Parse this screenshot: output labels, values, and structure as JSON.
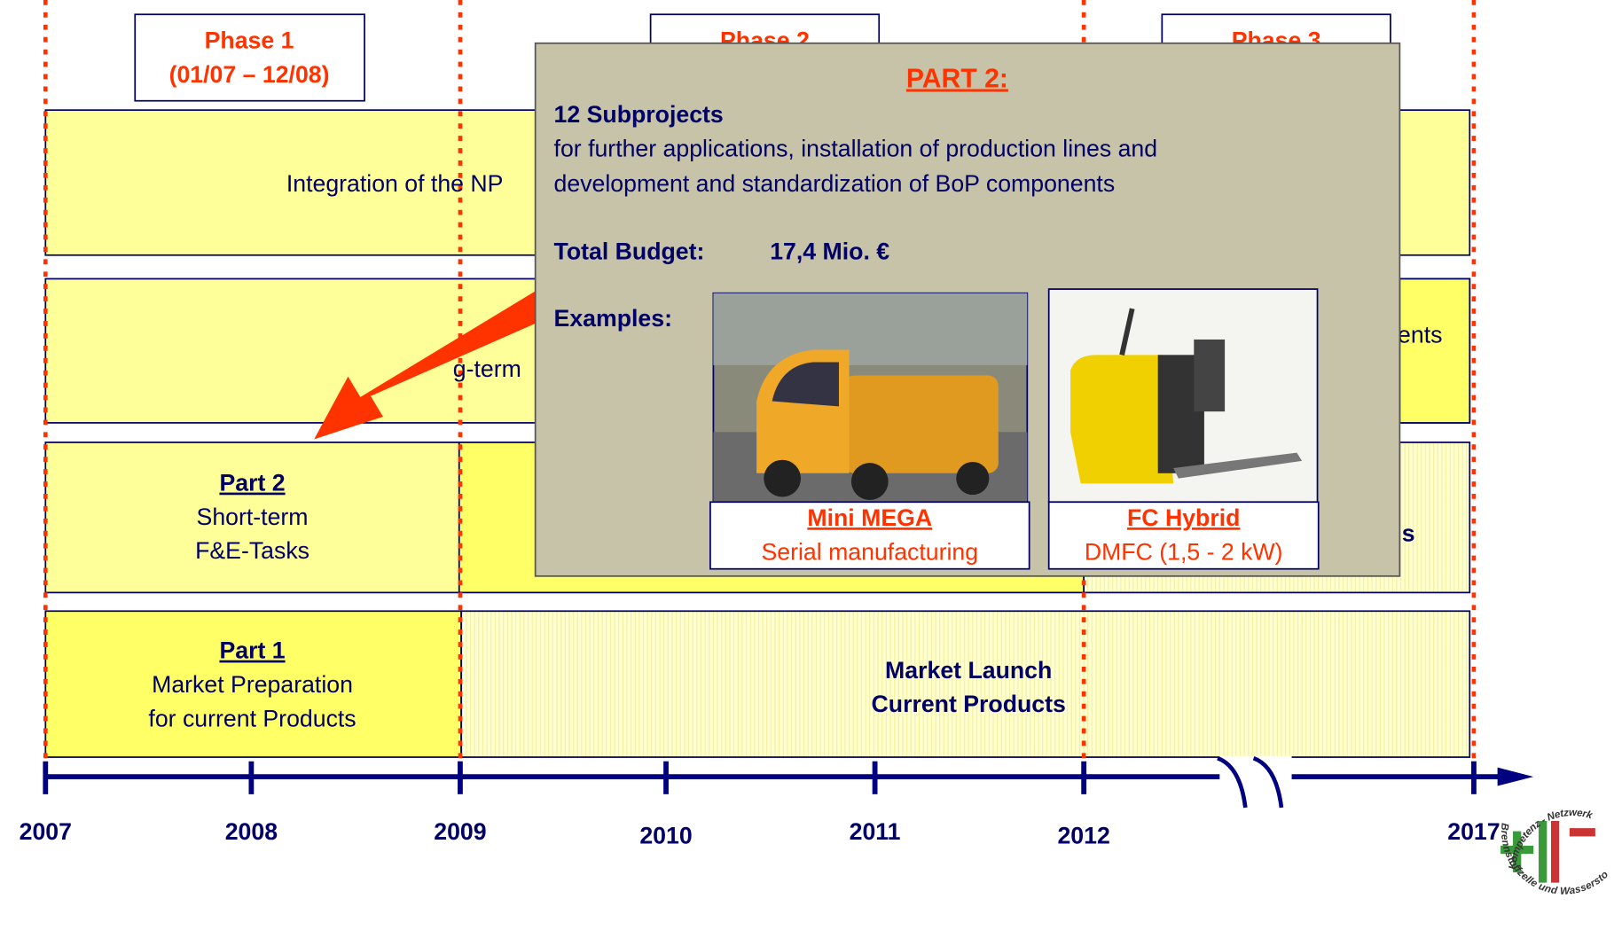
{
  "phases": [
    {
      "label": "Phase 1",
      "period": "(01/07 – 12/08)"
    },
    {
      "label": "Phase 2"
    },
    {
      "label": "Phase 3"
    }
  ],
  "rows": {
    "integration": "Integration of the NP",
    "row2_fragment_left": "g-term",
    "row2_fragment_right": "ents",
    "row3_fragment_right": "s",
    "part2": {
      "title": "Part 2",
      "lines": [
        "Short-term",
        "F&E-Tasks"
      ]
    },
    "part1": {
      "title": "Part 1",
      "lines": [
        "Market Preparation",
        "for current Products"
      ]
    },
    "launch": [
      "Market Launch",
      "Current Products"
    ]
  },
  "years": [
    2007,
    2008,
    2009,
    2010,
    2011,
    2012,
    2017
  ],
  "popup": {
    "title": "PART 2:",
    "subprojects": "12 Subprojects",
    "description": [
      "for further applications, installation of production lines and",
      "development and standardization of BoP components"
    ],
    "budget_label": "Total Budget:",
    "budget_value": "17,4 Mio. €",
    "examples_label": "Examples:",
    "examples": [
      {
        "title": "Mini MEGA",
        "caption": "Serial manufacturing"
      },
      {
        "title": "FC Hybrid",
        "caption": "DMFC (1,5 -  2 kW)"
      }
    ]
  },
  "logo": {
    "top": "Kompetenz - Netzwerk",
    "bottom": "Brennstoffzelle und Wasserstoff NRW"
  }
}
